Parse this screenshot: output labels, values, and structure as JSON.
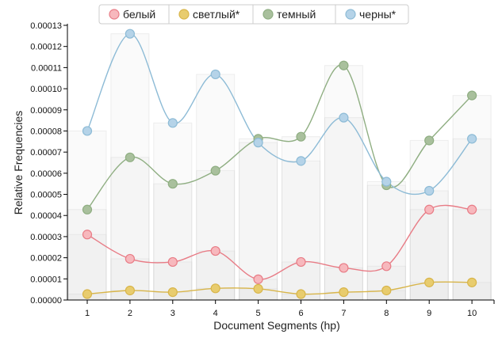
{
  "chart_data": {
    "type": "line",
    "xlabel": "Document Segments (hp)",
    "ylabel": "Relative Frequencies",
    "x": [
      1,
      2,
      3,
      4,
      5,
      6,
      7,
      8,
      9,
      10
    ],
    "ylim": [
      0,
      0.00013
    ],
    "yticks": [
      "0.00000",
      "0.00001",
      "0.00002",
      "0.00003",
      "0.00004",
      "0.00005",
      "0.00006",
      "0.00007",
      "0.00008",
      "0.00009",
      "0.00010",
      "0.00011",
      "0.00012",
      "0.00013"
    ],
    "legend_position": "top-center",
    "grid": false,
    "series": [
      {
        "name": "белый",
        "color": "#e87c86",
        "fill": "#f7b8bd",
        "values": [
          3.1e-05,
          1.95e-05,
          1.8e-05,
          2.32e-05,
          9.8e-06,
          1.8e-05,
          1.52e-05,
          1.6e-05,
          4.28e-05,
          4.28e-05
        ]
      },
      {
        "name": "светлый*",
        "color": "#d8b54a",
        "fill": "#e8cc6e",
        "values": [
          2.8e-06,
          4.5e-06,
          3.7e-06,
          5.5e-06,
          5.3e-06,
          2.8e-06,
          3.7e-06,
          4.5e-06,
          8.3e-06,
          8.3e-06
        ]
      },
      {
        "name": "темный",
        "color": "#8fae82",
        "fill": "#a9c09d",
        "values": [
          4.28e-05,
          6.75e-05,
          5.5e-05,
          6.12e-05,
          7.63e-05,
          7.73e-05,
          0.000111,
          5.43e-05,
          7.55e-05,
          9.68e-05
        ]
      },
      {
        "name": "черны*",
        "color": "#8dbbd6",
        "fill": "#b5d3e8",
        "values": [
          8e-05,
          0.000126,
          8.38e-05,
          0.0001068,
          7.45e-05,
          6.58e-05,
          8.63e-05,
          5.6e-05,
          5.17e-05,
          7.63e-05
        ]
      }
    ]
  }
}
